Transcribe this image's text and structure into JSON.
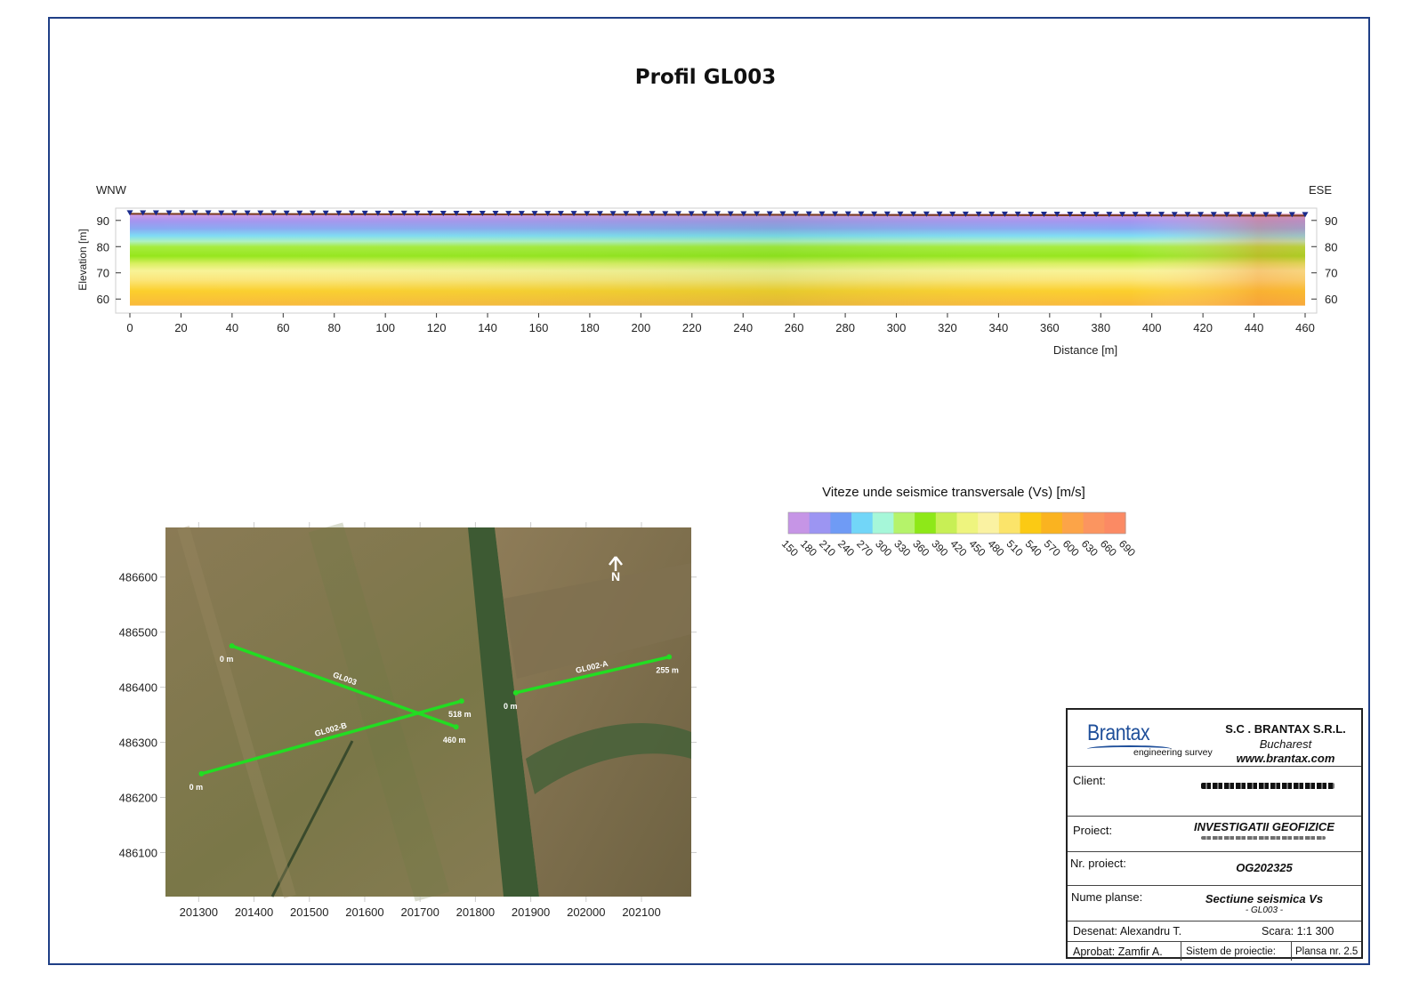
{
  "title": "Profil GL003",
  "colors": {
    "frame": "#1f3f86",
    "line": "#22dd22",
    "marker": "#1a2a8c"
  },
  "chart_data": [
    {
      "type": "heatmap",
      "title": "Profil GL003",
      "left_label": "WNW",
      "right_label": "ESE",
      "xlabel": "Distance [m]",
      "ylabel": "Elevation [m]",
      "xlim": [
        0,
        460
      ],
      "ylim": [
        56,
        94
      ],
      "xticks": [
        0,
        20,
        40,
        60,
        80,
        100,
        120,
        140,
        160,
        180,
        200,
        220,
        240,
        260,
        280,
        300,
        320,
        340,
        360,
        380,
        400,
        420,
        440,
        460
      ],
      "yticks": [
        60,
        70,
        80,
        90
      ],
      "surface_elevation": 92.5,
      "bottom_elevation": 57.5,
      "receiver_count": 91
    },
    {
      "type": "colorbar",
      "title": "Viteze unde seismice transversale (Vs) [m/s]",
      "ticks": [
        150,
        180,
        210,
        240,
        270,
        300,
        330,
        360,
        390,
        420,
        450,
        480,
        510,
        540,
        570,
        600,
        630,
        660,
        690
      ],
      "colors": [
        "#c695e6",
        "#9c95f2",
        "#6f9bf5",
        "#72d6f8",
        "#a6f7d9",
        "#b5f36a",
        "#8ee818",
        "#c8ef55",
        "#eef47e",
        "#faf2a2",
        "#fbe46a",
        "#fbca14",
        "#fab320",
        "#fca448",
        "#fb9560",
        "#fb8a64"
      ]
    },
    {
      "type": "scatter",
      "title": "",
      "xticks": [
        201300,
        201400,
        201500,
        201600,
        201700,
        201800,
        201900,
        202000,
        202100
      ],
      "yticks": [
        486600,
        486500,
        486400,
        486300,
        486200,
        486100
      ],
      "xlim": [
        201240,
        202190
      ],
      "ylim": [
        486020,
        486690
      ],
      "north_label": "N",
      "lines": [
        {
          "name": "GL003",
          "start": [
            201360,
            486475
          ],
          "end": [
            201765,
            486328
          ],
          "start_label": "0 m",
          "end_label": "460 m"
        },
        {
          "name": "GL002-B",
          "start": [
            201305,
            486243
          ],
          "end": [
            201775,
            486375
          ],
          "start_label": "0 m",
          "end_label": "518 m"
        },
        {
          "name": "GL002-A",
          "start": [
            201873,
            486390
          ],
          "end": [
            202150,
            486455
          ],
          "start_label": "0 m",
          "end_label": "255 m"
        }
      ]
    }
  ],
  "title_block": {
    "logo": "Brantax",
    "tagline": "engineering survey",
    "company": "S.C . BRANTAX S.R.L.",
    "city": "Bucharest",
    "website": "www.brantax.com",
    "client_label": "Client:",
    "project_label": "Proiect:",
    "project_value": "INVESTIGATII GEOFIZICE",
    "project_no_label": "Nr. proiect:",
    "project_no_value": "OG202325",
    "sheet_name_label": "Nume planse:",
    "sheet_name_value": "Sectiune seismica Vs",
    "sheet_name_sub": "- GL003 -",
    "drawn": "Desenat: Alexandru T.",
    "scale": "Scara: 1:1 300",
    "approved": "Aprobat: Zamfir A.",
    "projection": "Sistem de proiectie:",
    "sheet_no": "Plansa nr. 2.5"
  }
}
